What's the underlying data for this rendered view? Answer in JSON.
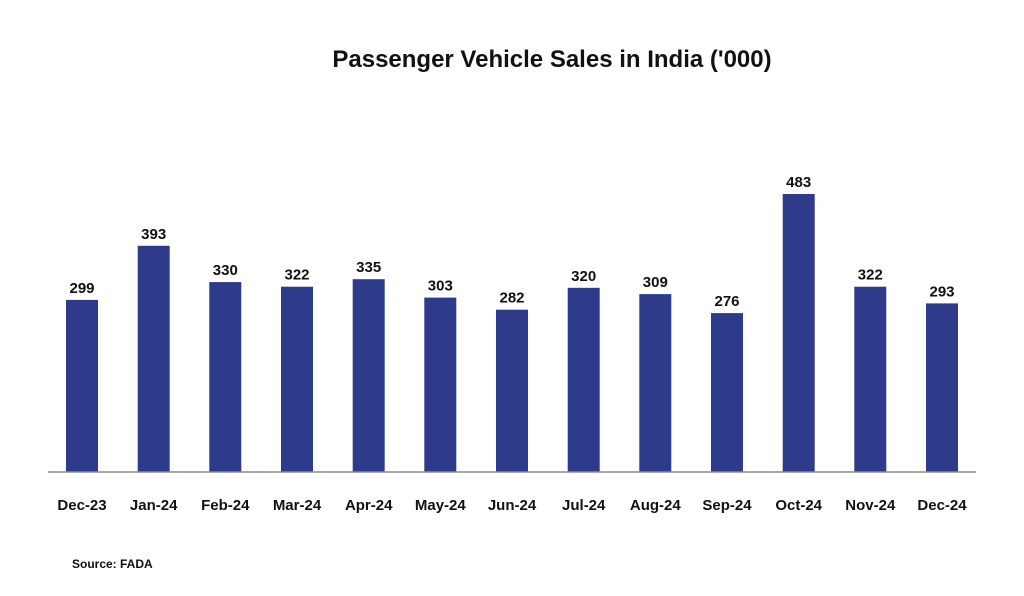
{
  "chart_data": {
    "type": "bar",
    "title": "Passenger Vehicle Sales in India ('000)",
    "categories": [
      "Dec-23",
      "Jan-24",
      "Feb-24",
      "Mar-24",
      "Apr-24",
      "May-24",
      "Jun-24",
      "Jul-24",
      "Aug-24",
      "Sep-24",
      "Oct-24",
      "Nov-24",
      "Dec-24"
    ],
    "values": [
      299,
      393,
      330,
      322,
      335,
      303,
      282,
      320,
      309,
      276,
      483,
      322,
      293
    ],
    "xlabel": "",
    "ylabel": "",
    "ylim": [
      0,
      483
    ],
    "grid": false,
    "bar_color": "#2e3a8a",
    "axis_color": "#8c8c8c"
  },
  "source": "Source: FADA"
}
